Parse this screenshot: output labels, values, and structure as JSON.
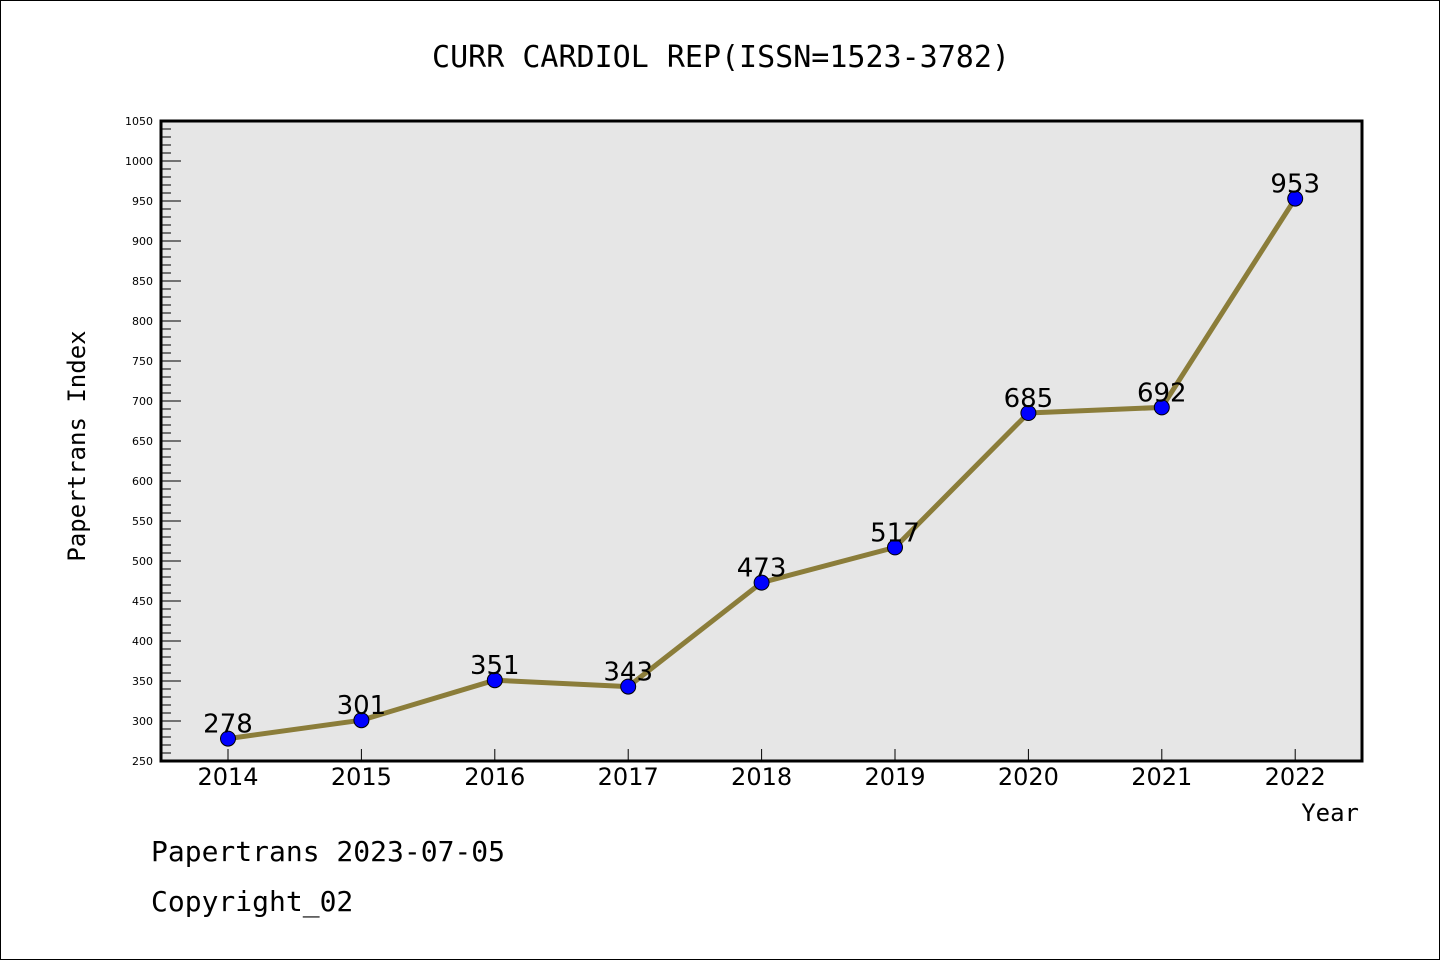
{
  "colors": {
    "plot_background": "#e6e6e6",
    "line": "#8b7d3a",
    "marker": "#0000ff"
  },
  "chart_data": {
    "type": "line",
    "title": "CURR CARDIOL REP(ISSN=1523-3782)",
    "xlabel": "Year",
    "ylabel": "Papertrans Index",
    "categories": [
      "2014",
      "2015",
      "2016",
      "2017",
      "2018",
      "2019",
      "2020",
      "2021",
      "2022"
    ],
    "values": [
      278,
      301,
      351,
      343,
      473,
      517,
      685,
      692,
      953
    ],
    "ylim": [
      250,
      1050
    ],
    "yticks": [
      250,
      300,
      350,
      400,
      450,
      500,
      550,
      600,
      650,
      700,
      750,
      800,
      850,
      900,
      950,
      1000,
      1050
    ],
    "grid": false,
    "legend": "none"
  },
  "footer": {
    "line1": "Papertrans 2023-07-05",
    "line2": "Copyright_02"
  }
}
